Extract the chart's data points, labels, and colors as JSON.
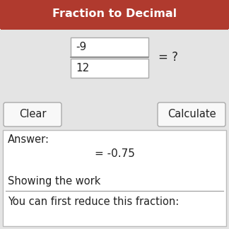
{
  "title": "Fraction to Decimal",
  "title_bg": "#b03a2e",
  "title_fg": "#ffffff",
  "outer_bg": "#e4e4e4",
  "answer_box_bg": "#ffffff",
  "numerator": "-9",
  "denominator": "12",
  "equals_question": "= ?",
  "answer_label": "Answer:",
  "answer_value": "= -0.75",
  "showing_work": "Showing the work",
  "reduce_text": "You can first reduce this fraction:",
  "clear_btn": "Clear",
  "calc_btn": "Calculate",
  "border_color": "#bbbbbb",
  "button_bg": "#f8f8f8",
  "button_border": "#aaaaaa",
  "input_bg": "#ffffff",
  "input_border": "#aaaaaa",
  "body_text_color": "#222222",
  "answer_value_color": "#222222",
  "showing_work_color": "#222222",
  "fraction_line_color": "#888888"
}
